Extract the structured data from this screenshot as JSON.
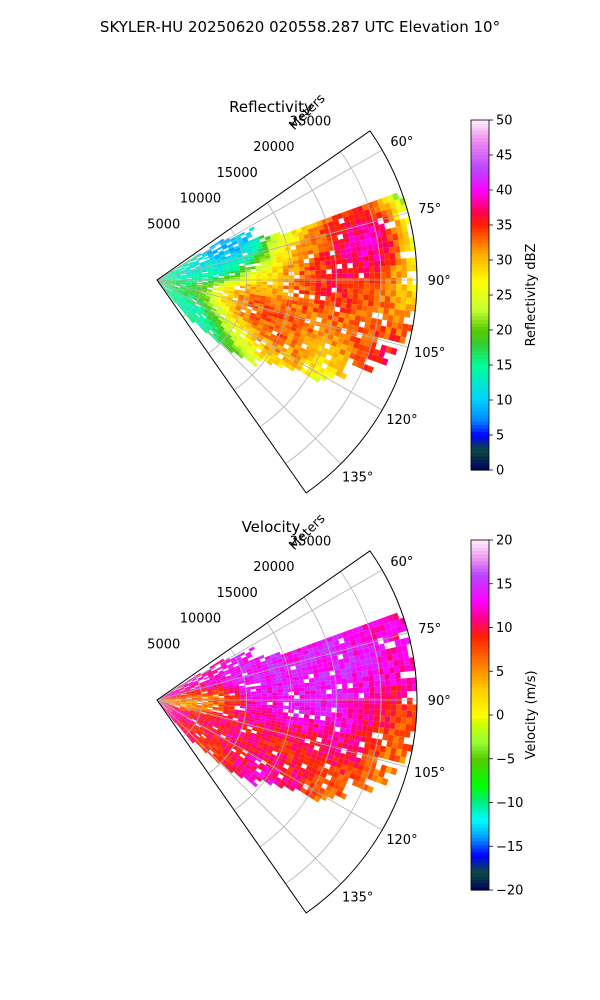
{
  "figure": {
    "title": "SKYLER-HU  20250620  020558.287 UTC Elevation 10°"
  },
  "chart_data": [
    {
      "type": "heatmap",
      "projection": "polar-sector",
      "title": "Reflectivity",
      "radial_label": "Meters",
      "radial_ticks": [
        "5000",
        "10000",
        "15000",
        "20000",
        "25000"
      ],
      "radial_tick_values": [
        5000,
        10000,
        15000,
        20000,
        25000
      ],
      "rmax": 29000,
      "azimuth_ticks": [
        "60°",
        "75°",
        "90°",
        "105°",
        "120°",
        "135°"
      ],
      "azimuth_tick_values": [
        60,
        75,
        90,
        105,
        120,
        135
      ],
      "azimuth_range": [
        55,
        145
      ],
      "grid": true,
      "colorbar": {
        "label": "Reflectivity dBZ",
        "min": 0,
        "max": 50,
        "ticks": [
          "0",
          "5",
          "10",
          "15",
          "20",
          "25",
          "30",
          "35",
          "40",
          "45",
          "50"
        ],
        "tick_values": [
          0,
          5,
          10,
          15,
          20,
          25,
          30,
          35,
          40,
          45,
          50
        ],
        "stops": [
          {
            "v": 0,
            "c": "#000060"
          },
          {
            "v": 3,
            "c": "#0c4a40"
          },
          {
            "v": 5,
            "c": "#0000ff"
          },
          {
            "v": 7,
            "c": "#0080ff"
          },
          {
            "v": 10,
            "c": "#00d0ff"
          },
          {
            "v": 15,
            "c": "#00ff99"
          },
          {
            "v": 18,
            "c": "#33cc33"
          },
          {
            "v": 20,
            "c": "#55cc00"
          },
          {
            "v": 23,
            "c": "#c8ff33"
          },
          {
            "v": 27,
            "c": "#ffff00"
          },
          {
            "v": 31,
            "c": "#ffaa00"
          },
          {
            "v": 35,
            "c": "#ff2200"
          },
          {
            "v": 37,
            "c": "#ff0055"
          },
          {
            "v": 40,
            "c": "#ff00ff"
          },
          {
            "v": 43,
            "c": "#bb44ff"
          },
          {
            "v": 47,
            "c": "#ee88ee"
          },
          {
            "v": 50,
            "c": "#ffeeff"
          }
        ]
      },
      "field": {
        "base": 17,
        "cells": [
          {
            "az": 70,
            "r": 16000,
            "v": 28
          },
          {
            "az": 75,
            "r": 19000,
            "v": 36
          },
          {
            "az": 78,
            "r": 23000,
            "v": 44
          },
          {
            "az": 82,
            "r": 22000,
            "v": 42
          },
          {
            "az": 85,
            "r": 18000,
            "v": 34
          },
          {
            "az": 90,
            "r": 18000,
            "v": 40
          },
          {
            "az": 93,
            "r": 14000,
            "v": 30
          },
          {
            "az": 95,
            "r": 19000,
            "v": 37
          },
          {
            "az": 98,
            "r": 23000,
            "v": 36
          },
          {
            "az": 100,
            "r": 11000,
            "v": 36
          },
          {
            "az": 105,
            "r": 14000,
            "v": 38
          },
          {
            "az": 108,
            "r": 22000,
            "v": 33
          },
          {
            "az": 110,
            "r": 27000,
            "v": 45
          },
          {
            "az": 113,
            "r": 12000,
            "v": 37
          },
          {
            "az": 117,
            "r": 16000,
            "v": 35
          },
          {
            "az": 121,
            "r": 10000,
            "v": 26
          },
          {
            "az": 128,
            "r": 6000,
            "v": 12
          },
          {
            "az": 77,
            "r": 4000,
            "v": 11
          },
          {
            "az": 64,
            "r": 9000,
            "v": 6
          },
          {
            "az": 96,
            "r": 27000,
            "v": 33
          }
        ]
      }
    },
    {
      "type": "heatmap",
      "projection": "polar-sector",
      "title": "Velocity",
      "radial_label": "Meters",
      "radial_ticks": [
        "5000",
        "10000",
        "15000",
        "20000",
        "25000"
      ],
      "radial_tick_values": [
        5000,
        10000,
        15000,
        20000,
        25000
      ],
      "rmax": 29000,
      "azimuth_ticks": [
        "60°",
        "75°",
        "90°",
        "105°",
        "120°",
        "135°"
      ],
      "azimuth_tick_values": [
        60,
        75,
        90,
        105,
        120,
        135
      ],
      "azimuth_range": [
        55,
        145
      ],
      "grid": true,
      "colorbar": {
        "label": "Velocity (m/s)",
        "min": -20,
        "max": 20,
        "ticks": [
          "−20",
          "−15",
          "−10",
          "−5",
          "0",
          "5",
          "10",
          "15",
          "20"
        ],
        "tick_values": [
          -20,
          -15,
          -10,
          -5,
          0,
          5,
          10,
          15,
          20
        ],
        "stops": [
          {
            "v": -20,
            "c": "#000060"
          },
          {
            "v": -18,
            "c": "#0c4a40"
          },
          {
            "v": -16,
            "c": "#0000ff"
          },
          {
            "v": -14,
            "c": "#0099ff"
          },
          {
            "v": -12,
            "c": "#00ffff"
          },
          {
            "v": -10,
            "c": "#00ee88"
          },
          {
            "v": -8,
            "c": "#00ff00"
          },
          {
            "v": -5,
            "c": "#55cc00"
          },
          {
            "v": -3,
            "c": "#99ff33"
          },
          {
            "v": -1,
            "c": "#ccff00"
          },
          {
            "v": 0,
            "c": "#ffff00"
          },
          {
            "v": 3,
            "c": "#ffcc00"
          },
          {
            "v": 6,
            "c": "#ff7700"
          },
          {
            "v": 9,
            "c": "#ff2200"
          },
          {
            "v": 11,
            "c": "#ff0088"
          },
          {
            "v": 13,
            "c": "#ff00ff"
          },
          {
            "v": 16,
            "c": "#bb44ff"
          },
          {
            "v": 18,
            "c": "#ee99ee"
          },
          {
            "v": 20,
            "c": "#ffeeff"
          }
        ]
      },
      "field": {
        "base": 12,
        "cells": [
          {
            "az": 70,
            "r": 12000,
            "v": 15
          },
          {
            "az": 80,
            "r": 20000,
            "v": 15
          },
          {
            "az": 85,
            "r": 14000,
            "v": 14
          },
          {
            "az": 92,
            "r": 17000,
            "v": 14
          },
          {
            "az": 97,
            "r": 22000,
            "v": 13
          },
          {
            "az": 100,
            "r": 26000,
            "v": 8
          },
          {
            "az": 105,
            "r": 27000,
            "v": 2
          },
          {
            "az": 108,
            "r": 18000,
            "v": 9
          },
          {
            "az": 115,
            "r": 14000,
            "v": 8
          },
          {
            "az": 120,
            "r": 22000,
            "v": 5
          },
          {
            "az": 125,
            "r": 14000,
            "v": 14
          },
          {
            "az": 130,
            "r": 8000,
            "v": 7
          },
          {
            "az": 122,
            "r": 8000,
            "v": 10
          },
          {
            "az": 90,
            "r": 4000,
            "v": 4
          },
          {
            "az": 99,
            "r": 1500,
            "v": 3
          },
          {
            "az": 110,
            "r": 9000,
            "v": 10
          }
        ]
      }
    }
  ]
}
